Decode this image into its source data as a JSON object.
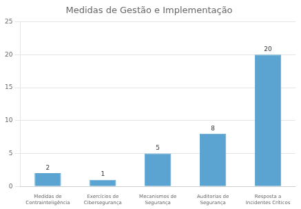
{
  "chart_data": {
    "type": "bar",
    "title": "Medidas de Gestão e Implementação",
    "categories": [
      "Medidas de\nContrainteligência",
      "Exercícios de\nCibersegurança",
      "Mecanismos de\nSegurança",
      "Auditorias de\nSegurança",
      "Resposta a\nIncidentes Críticos"
    ],
    "values": [
      2,
      1,
      5,
      8,
      20
    ],
    "color": "#5ba3d0",
    "ylim": [
      0,
      25
    ],
    "yticks": [
      0,
      5,
      10,
      15,
      20,
      25
    ],
    "grid": true,
    "data_labels": true
  }
}
